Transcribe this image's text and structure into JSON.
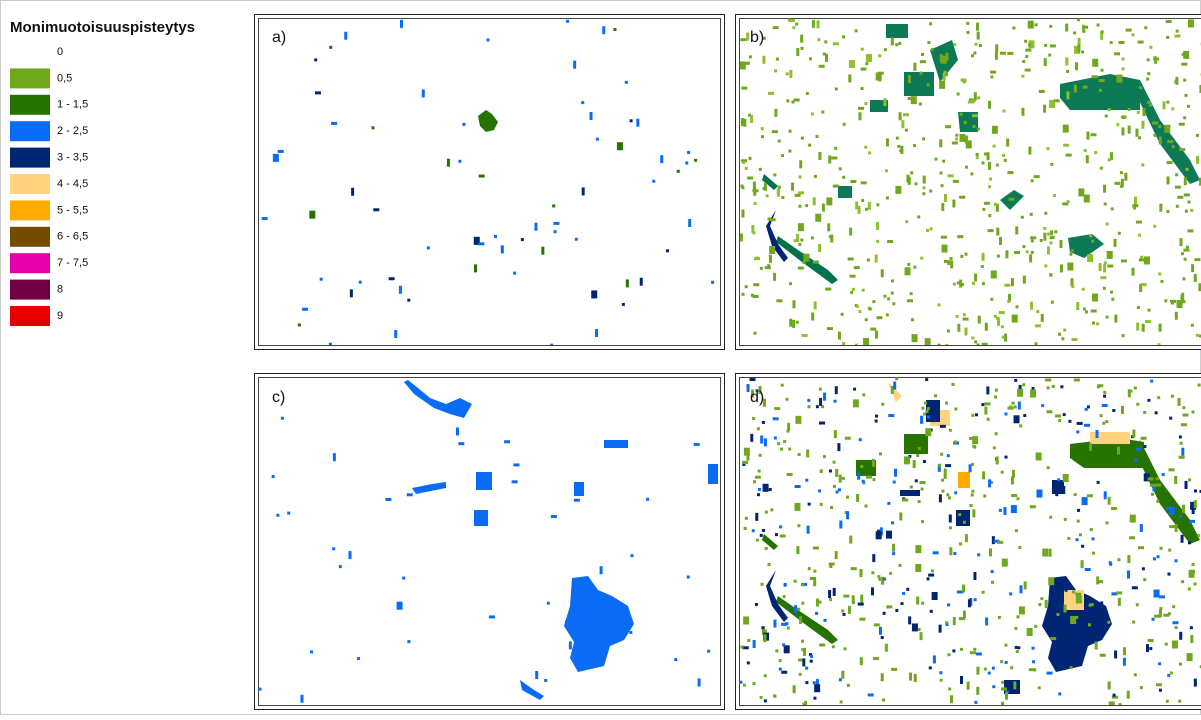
{
  "legend": {
    "title": "Monimuotoisuuspisteytys",
    "items": [
      {
        "label": "0",
        "color": "#ffffff"
      },
      {
        "label": "0,5",
        "color": "#6fa81e"
      },
      {
        "label": "1 - 1,5",
        "color": "#267300"
      },
      {
        "label": "2 - 2,5",
        "color": "#0a6cf5"
      },
      {
        "label": "3 - 3,5",
        "color": "#002673"
      },
      {
        "label": "4 - 4,5",
        "color": "#ffd37f"
      },
      {
        "label": "5 - 5,5",
        "color": "#ffaa00"
      },
      {
        "label": "6 - 6,5",
        "color": "#734c00"
      },
      {
        "label": "7 - 7,5",
        "color": "#e600a9"
      },
      {
        "label": "8",
        "color": "#730045"
      },
      {
        "label": "9",
        "color": "#e60000"
      }
    ]
  },
  "panels": [
    {
      "label": "a)"
    },
    {
      "label": "b)"
    },
    {
      "label": "c)"
    },
    {
      "label": "d)"
    }
  ]
}
